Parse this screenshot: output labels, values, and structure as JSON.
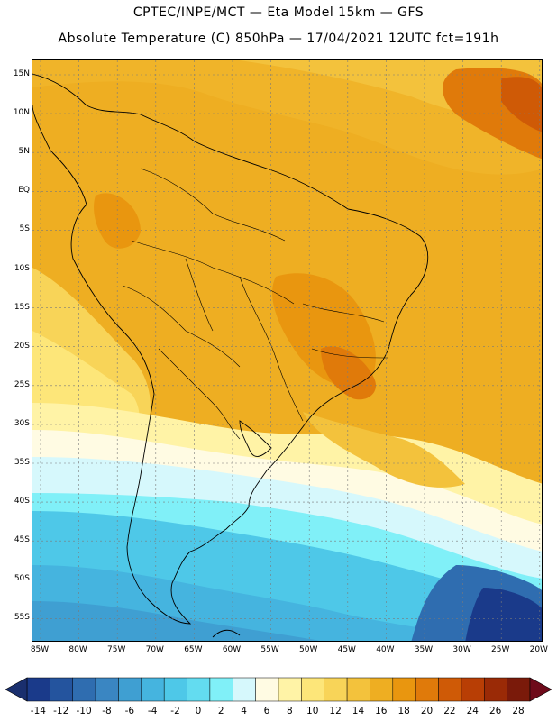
{
  "header": {
    "line1": "CPTEC/INPE/MCT —  Eta Model 15km — GFS",
    "line2": "Absolute Temperature (C) 850hPa — 17/04/2021 12UTC fct=191h"
  },
  "map": {
    "lat_labels": [
      "15N",
      "10N",
      "5N",
      "EQ",
      "5S",
      "10S",
      "15S",
      "20S",
      "25S",
      "30S",
      "35S",
      "40S",
      "45S",
      "50S",
      "55S"
    ],
    "lon_labels": [
      "85W",
      "80W",
      "75W",
      "70W",
      "65W",
      "60W",
      "55W",
      "50W",
      "45W",
      "40W",
      "35W",
      "30W",
      "25W",
      "20W"
    ]
  },
  "colorbar": {
    "labels": [
      "-14",
      "-12",
      "-10",
      "-8",
      "-6",
      "-4",
      "-2",
      "0",
      "2",
      "4",
      "6",
      "8",
      "10",
      "12",
      "14",
      "16",
      "18",
      "20",
      "22",
      "24",
      "26",
      "28"
    ],
    "colors": [
      "#1a3a8a",
      "#24549e",
      "#2f6db0",
      "#3a86c2",
      "#3f9fd2",
      "#45b4df",
      "#4ec8e8",
      "#63dcf0",
      "#80f0f8",
      "#d6f8fc",
      "#fffbe3",
      "#fff3a6",
      "#fde679",
      "#f8d458",
      "#f3c23c",
      "#eeae22",
      "#e9960f",
      "#e07a0a",
      "#cf5a06",
      "#b83e05",
      "#9a2a06",
      "#7a1a0a"
    ]
  }
}
